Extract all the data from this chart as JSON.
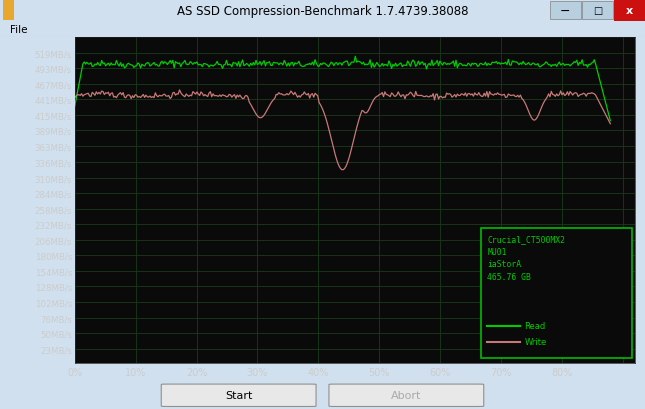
{
  "title": "AS SSD Compression-Benchmark 1.7.4739.38088",
  "plot_bg_color": "#0a0a0a",
  "grid_color": "#1a3a1a",
  "read_color": "#00cc00",
  "write_color": "#c87878",
  "ytick_labels": [
    "519MB/s",
    "493MB/s",
    "467MB/s",
    "441MB/s",
    "415MB/s",
    "389MB/s",
    "363MB/s",
    "336MB/s",
    "310MB/s",
    "284MB/s",
    "258MB/s",
    "232MB/s",
    "206MB/s",
    "180MB/s",
    "154MB/s",
    "128MB/s",
    "102MB/s",
    "76MB/s",
    "50MB/s",
    "23MB/s"
  ],
  "ytick_values": [
    519,
    493,
    467,
    441,
    415,
    389,
    363,
    336,
    310,
    284,
    258,
    232,
    206,
    180,
    154,
    128,
    102,
    76,
    50,
    23
  ],
  "xtick_labels": [
    "0%",
    "10%",
    "20%",
    "30%",
    "40%",
    "50%",
    "60%",
    "70%",
    "80%",
    ""
  ],
  "xtick_values": [
    0,
    10,
    20,
    30,
    40,
    50,
    60,
    70,
    80,
    90
  ],
  "ymin": 0,
  "ymax": 545,
  "xmin": 0,
  "xmax": 92,
  "legend_text": "Crucial_CT500MX2\nMU01\niaStorA\n465.76 GB",
  "legend_read": "Read",
  "legend_write": "Write",
  "titlebar_bg": "#b8cfe0",
  "titlebar_text_color": "#000000",
  "menubar_bg": "#f0f0f0",
  "outer_bg": "#d0e0ee",
  "close_btn_color": "#cc1010",
  "win_btn_color": "#b8cfe0",
  "icon_color_top": "#e8a830",
  "icon_color_bot": "#d07818"
}
